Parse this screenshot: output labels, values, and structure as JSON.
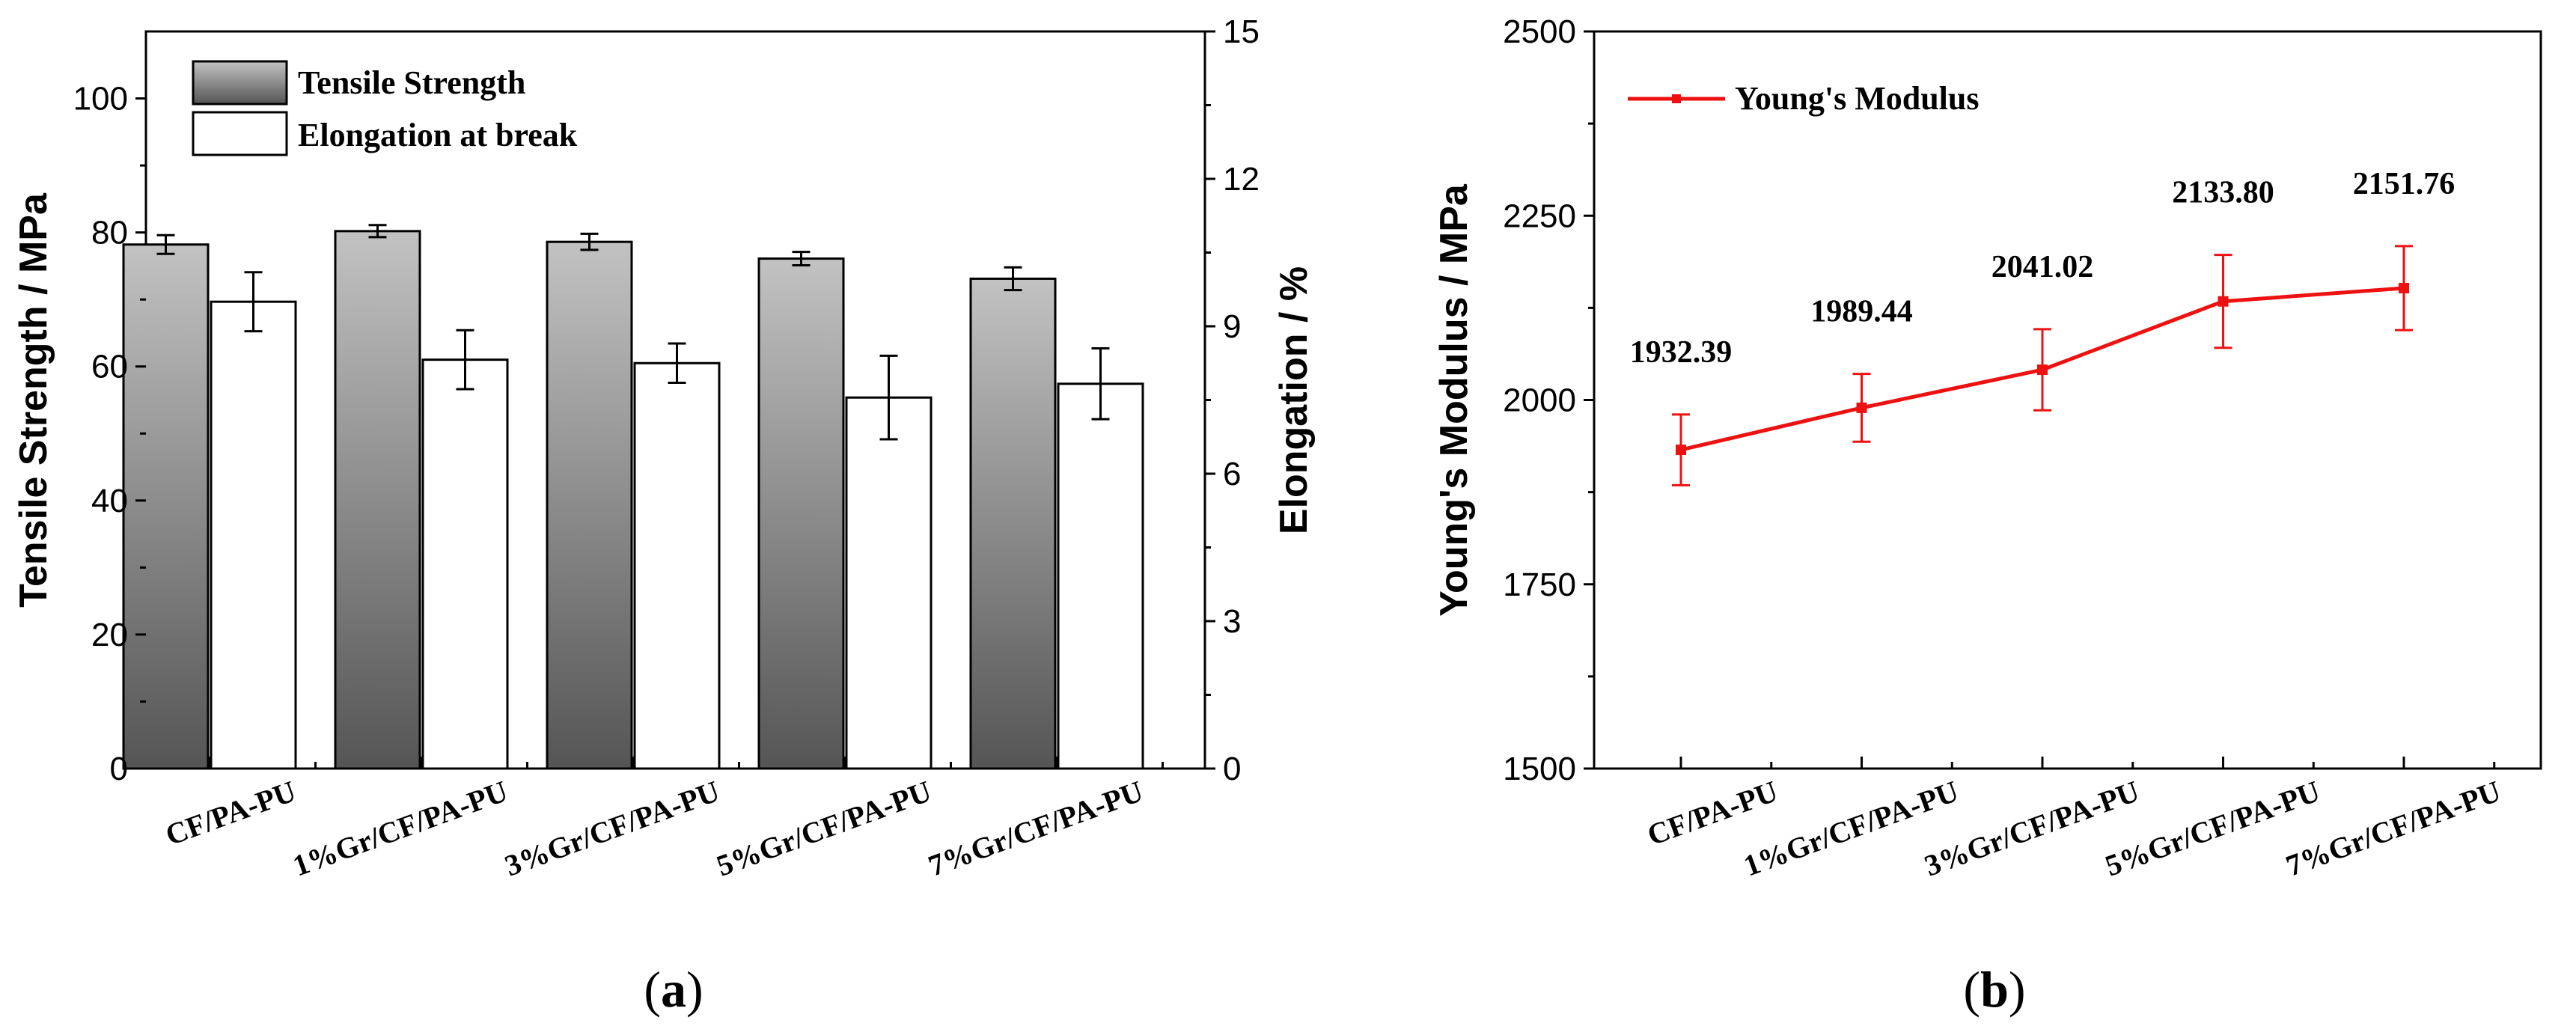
{
  "chart_data": [
    {
      "id": "a",
      "panel_label": "(a)",
      "panel_letter": "a",
      "type": "bar",
      "categories": [
        "CF/PA-PU",
        "1%Gr/CF/PA-PU",
        "3%Gr/CF/PA-PU",
        "5%Gr/CF/PA-PU",
        "7%Gr/CF/PA-PU"
      ],
      "series": [
        {
          "name": "Tensile Strength",
          "axis": "left",
          "values": [
            78.2,
            80.2,
            78.6,
            76.1,
            73.1
          ],
          "errors": [
            1.4,
            0.9,
            1.2,
            1.0,
            1.7
          ],
          "fill_top": "#c2c2c2",
          "fill_bottom": "#555555"
        },
        {
          "name": "Elongation at break",
          "axis": "right",
          "values": [
            9.5,
            8.32,
            8.25,
            7.55,
            7.83
          ],
          "errors": [
            0.6,
            0.6,
            0.4,
            0.85,
            0.72
          ],
          "fill": "#ffffff"
        }
      ],
      "ylabel_left": "Tensile Strength / MPa",
      "ylabel_right": "Elongation / %",
      "ylim_left": [
        0,
        110
      ],
      "ylim_right": [
        0,
        15
      ],
      "yticks_left": [
        "0",
        "20",
        "40",
        "60",
        "80",
        "100"
      ],
      "yticks_right": [
        "0",
        "3",
        "6",
        "9",
        "12",
        "15"
      ],
      "legend_position": "top-left"
    },
    {
      "id": "b",
      "panel_label": "(b)",
      "panel_letter": "b",
      "type": "line",
      "categories": [
        "CF/PA-PU",
        "1%Gr/CF/PA-PU",
        "3%Gr/CF/PA-PU",
        "5%Gr/CF/PA-PU",
        "7%Gr/CF/PA-PU"
      ],
      "series": [
        {
          "name": "Young's Modulus",
          "values": [
            1932.39,
            1989.44,
            2041.02,
            2133.8,
            2151.76
          ],
          "errors": [
            48,
            46,
            55,
            63,
            57
          ],
          "labels": [
            "1932.39",
            "1989.44",
            "2041.02",
            "2133.80",
            "2151.76"
          ],
          "color": "#ee1111"
        }
      ],
      "ylabel": "Young's Modulus / MPa",
      "ylim": [
        1500,
        2500
      ],
      "yticks": [
        "1500",
        "1750",
        "2000",
        "2250",
        "2500"
      ],
      "legend_position": "top-left"
    }
  ]
}
